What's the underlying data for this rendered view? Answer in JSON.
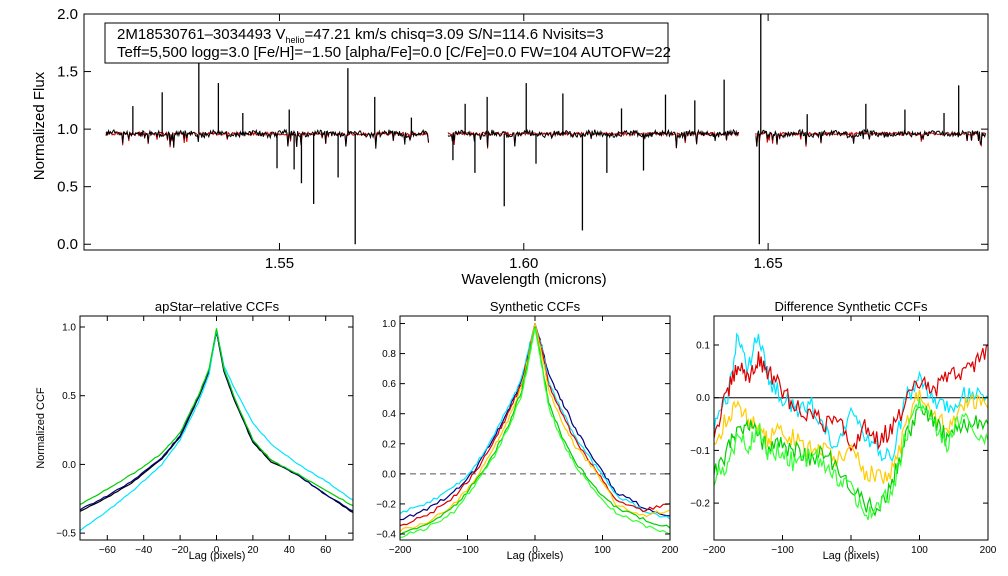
{
  "colors": {
    "background": "#ffffff",
    "axis": "#000000",
    "observed": "#000000",
    "model": "#cc0000",
    "black": "#000000",
    "navy": "#000080",
    "cyan": "#00e5ff",
    "green": "#00d000",
    "lime": "#33ff33",
    "yellow": "#ffcc00",
    "red": "#dd0000",
    "gray": "#555555"
  },
  "chart_data": [
    {
      "id": "spectrum",
      "type": "line",
      "title": "",
      "xlabel": "Wavelength (microns)",
      "ylabel": "Normalized Flux",
      "xlim": [
        1.51,
        1.695
      ],
      "ylim": [
        -0.05,
        2.0
      ],
      "x_ticks": [
        1.55,
        1.6,
        1.65
      ],
      "x_tick_labels": [
        "1.55",
        "1.60",
        "1.65"
      ],
      "y_ticks": [
        0.0,
        0.5,
        1.0,
        1.5,
        2.0
      ],
      "y_tick_labels": [
        "0.0",
        "0.5",
        "1.0",
        "1.5",
        "2.0"
      ],
      "chips": [
        [
          1.5145,
          1.5805
        ],
        [
          1.5845,
          1.644
        ],
        [
          1.6475,
          1.6945
        ]
      ],
      "continuum": 0.96,
      "emission_spikes": [
        [
          1.52,
          1.2
        ],
        [
          1.526,
          1.32
        ],
        [
          1.5335,
          1.6
        ],
        [
          1.5375,
          1.4
        ],
        [
          1.5425,
          1.14
        ],
        [
          1.552,
          1.17
        ],
        [
          1.564,
          1.53
        ],
        [
          1.5695,
          1.28
        ],
        [
          1.577,
          1.1
        ],
        [
          1.588,
          1.22
        ],
        [
          1.5925,
          1.28
        ],
        [
          1.6005,
          1.4
        ],
        [
          1.608,
          1.31
        ],
        [
          1.62,
          1.18
        ],
        [
          1.629,
          1.3
        ],
        [
          1.635,
          1.25
        ],
        [
          1.641,
          1.43
        ],
        [
          1.6485,
          2.0
        ],
        [
          1.658,
          1.13
        ],
        [
          1.67,
          1.22
        ],
        [
          1.678,
          1.17
        ],
        [
          1.686,
          1.14
        ],
        [
          1.689,
          1.38
        ]
      ],
      "absorption_spikes": [
        [
          1.5495,
          0.66
        ],
        [
          1.553,
          0.65
        ],
        [
          1.5545,
          0.53
        ],
        [
          1.557,
          0.35
        ],
        [
          1.562,
          0.58
        ],
        [
          1.5655,
          0.0
        ],
        [
          1.5855,
          0.73
        ],
        [
          1.59,
          0.62
        ],
        [
          1.596,
          0.33
        ],
        [
          1.6025,
          0.7
        ],
        [
          1.612,
          0.12
        ],
        [
          1.617,
          0.62
        ],
        [
          1.6245,
          0.64
        ],
        [
          1.6482,
          0.0
        ]
      ],
      "annotation": {
        "line1": "2M18530761–3034493  V",
        "sub": "helio",
        "line1b": "=47.21 km/s  chisq=3.09  S/N=114.6  Nvisits=3",
        "line2": "Teff=5,500 logg=3.0 [Fe/H]=−1.50 [alpha/Fe]=0.0 [C/Fe]=0.0 FW=104 AUTOFW=22"
      },
      "series": [
        {
          "name": "observed",
          "color": "#000000"
        },
        {
          "name": "model",
          "color": "#cc0000"
        }
      ]
    },
    {
      "id": "apstar_ccf",
      "type": "line",
      "title": "apStar–relative CCFs",
      "xlabel": "Lag (pixels)",
      "ylabel": "Normalized CCF",
      "xlim": [
        -75,
        75
      ],
      "ylim": [
        -0.55,
        1.08
      ],
      "x_ticks": [
        -60,
        -40,
        -20,
        0,
        20,
        40,
        60
      ],
      "x_tick_labels": [
        "−60",
        "−40",
        "−20",
        "0",
        "20",
        "40",
        "60"
      ],
      "y_ticks": [
        -0.5,
        0.0,
        0.5,
        1.0
      ],
      "y_tick_labels": [
        "−0.5",
        "0.0",
        "0.5",
        "1.0"
      ],
      "series": [
        {
          "name": "black",
          "color": "#000000",
          "x": [
            -75,
            -60,
            -45,
            -30,
            -20,
            -10,
            -4,
            0,
            4,
            10,
            20,
            30,
            45,
            60,
            75
          ],
          "y": [
            -0.34,
            -0.24,
            -0.12,
            0.04,
            0.2,
            0.48,
            0.68,
            0.97,
            0.68,
            0.46,
            0.16,
            0.02,
            -0.08,
            -0.22,
            -0.35
          ]
        },
        {
          "name": "navy",
          "color": "#000080",
          "x": [
            -75,
            -60,
            -45,
            -30,
            -20,
            -10,
            -4,
            0,
            4,
            10,
            20,
            30,
            45,
            60,
            75
          ],
          "y": [
            -0.33,
            -0.23,
            -0.11,
            0.05,
            0.21,
            0.49,
            0.69,
            0.97,
            0.69,
            0.47,
            0.17,
            0.03,
            -0.08,
            -0.22,
            -0.34
          ]
        },
        {
          "name": "cyan",
          "color": "#00e5ff",
          "x": [
            -75,
            -60,
            -45,
            -30,
            -20,
            -10,
            -4,
            0,
            4,
            10,
            20,
            30,
            45,
            60,
            75
          ],
          "y": [
            -0.48,
            -0.34,
            -0.18,
            0.0,
            0.18,
            0.45,
            0.66,
            0.98,
            0.72,
            0.55,
            0.3,
            0.15,
            0.0,
            -0.12,
            -0.26
          ]
        },
        {
          "name": "green",
          "color": "#00d000",
          "x": [
            -75,
            -60,
            -45,
            -30,
            -20,
            -10,
            -4,
            0,
            4,
            10,
            20,
            30,
            45,
            60,
            75
          ],
          "y": [
            -0.29,
            -0.18,
            -0.06,
            0.08,
            0.23,
            0.5,
            0.7,
            0.99,
            0.7,
            0.48,
            0.18,
            0.03,
            -0.07,
            -0.19,
            -0.3
          ]
        }
      ]
    },
    {
      "id": "synthetic_ccf",
      "type": "line",
      "title": "Synthetic CCFs",
      "xlabel": "Lag (pixels)",
      "ylabel": "",
      "xlim": [
        -200,
        200
      ],
      "ylim": [
        -0.44,
        1.05
      ],
      "x_ticks": [
        -200,
        -100,
        0,
        100,
        200
      ],
      "x_tick_labels": [
        "−200",
        "−100",
        "0",
        "100",
        "200"
      ],
      "y_ticks": [
        -0.4,
        -0.2,
        0.0,
        0.2,
        0.4,
        0.6,
        0.8,
        1.0
      ],
      "y_tick_labels": [
        "−0.4",
        "−0.2",
        "0.0",
        "0.2",
        "0.4",
        "0.6",
        "0.8",
        "1.0"
      ],
      "hline": 0.0,
      "series": [
        {
          "name": "navy",
          "color": "#000080",
          "x": [
            -200,
            -160,
            -120,
            -90,
            -60,
            -40,
            -20,
            -10,
            0,
            10,
            20,
            40,
            60,
            90,
            120,
            160,
            200
          ],
          "y": [
            -0.3,
            -0.24,
            -0.12,
            0.02,
            0.25,
            0.42,
            0.62,
            0.8,
            1.0,
            0.85,
            0.66,
            0.48,
            0.3,
            0.08,
            -0.12,
            -0.22,
            -0.28
          ]
        },
        {
          "name": "cyan",
          "color": "#00e5ff",
          "x": [
            -200,
            -160,
            -120,
            -90,
            -60,
            -40,
            -20,
            -10,
            0,
            10,
            20,
            40,
            60,
            90,
            120,
            160,
            200
          ],
          "y": [
            -0.26,
            -0.2,
            -0.09,
            0.04,
            0.27,
            0.44,
            0.63,
            0.82,
            1.0,
            0.84,
            0.62,
            0.42,
            0.24,
            0.05,
            -0.14,
            -0.24,
            -0.3
          ]
        },
        {
          "name": "red",
          "color": "#dd0000",
          "x": [
            -200,
            -160,
            -120,
            -90,
            -60,
            -40,
            -20,
            -10,
            0,
            10,
            20,
            40,
            60,
            90,
            120,
            160,
            200
          ],
          "y": [
            -0.34,
            -0.28,
            -0.15,
            0.0,
            0.22,
            0.4,
            0.6,
            0.79,
            1.0,
            0.82,
            0.6,
            0.4,
            0.22,
            0.02,
            -0.17,
            -0.24,
            -0.2
          ]
        },
        {
          "name": "yellow",
          "color": "#ffcc00",
          "x": [
            -200,
            -160,
            -120,
            -90,
            -60,
            -40,
            -20,
            -10,
            0,
            10,
            20,
            40,
            60,
            90,
            120,
            160,
            200
          ],
          "y": [
            -0.38,
            -0.32,
            -0.2,
            -0.05,
            0.18,
            0.36,
            0.58,
            0.78,
            1.0,
            0.8,
            0.56,
            0.35,
            0.18,
            0.02,
            -0.2,
            -0.28,
            -0.24
          ]
        },
        {
          "name": "green",
          "color": "#00d000",
          "x": [
            -200,
            -160,
            -120,
            -90,
            -60,
            -40,
            -20,
            -10,
            0,
            10,
            20,
            40,
            60,
            90,
            120,
            160,
            200
          ],
          "y": [
            -0.4,
            -0.34,
            -0.22,
            -0.06,
            0.14,
            0.32,
            0.55,
            0.76,
            0.98,
            0.74,
            0.48,
            0.25,
            0.08,
            -0.1,
            -0.22,
            -0.3,
            -0.36
          ]
        },
        {
          "name": "lime",
          "color": "#33ff33",
          "x": [
            -200,
            -160,
            -120,
            -90,
            -60,
            -40,
            -20,
            -10,
            0,
            10,
            20,
            40,
            60,
            90,
            120,
            160,
            200
          ],
          "y": [
            -0.42,
            -0.36,
            -0.25,
            -0.08,
            0.12,
            0.3,
            0.52,
            0.74,
            0.97,
            0.72,
            0.45,
            0.22,
            0.05,
            -0.12,
            -0.26,
            -0.34,
            -0.4
          ]
        }
      ]
    },
    {
      "id": "difference_ccf",
      "type": "line",
      "title": "Difference Synthetic CCFs",
      "xlabel": "Lag (pixels)",
      "ylabel": "",
      "xlim": [
        -200,
        200
      ],
      "ylim": [
        -0.27,
        0.155
      ],
      "x_ticks": [
        -200,
        -100,
        0,
        100,
        200
      ],
      "x_tick_labels": [
        "−200",
        "−100",
        "0",
        "100",
        "200"
      ],
      "y_ticks": [
        -0.2,
        -0.1,
        0.0,
        0.1
      ],
      "y_tick_labels": [
        "−0.2",
        "−0.1",
        "0.0",
        "0.1"
      ],
      "hline": 0.0,
      "series": [
        {
          "name": "cyan",
          "color": "#00e5ff",
          "x": [
            -200,
            -180,
            -165,
            -150,
            -135,
            -120,
            -100,
            -80,
            -60,
            -40,
            -20,
            0,
            20,
            40,
            60,
            80,
            100,
            120,
            140,
            160,
            180,
            200
          ],
          "y": [
            -0.06,
            0.0,
            0.12,
            0.05,
            0.13,
            0.03,
            0.0,
            -0.02,
            -0.01,
            -0.06,
            -0.1,
            -0.02,
            -0.08,
            -0.1,
            -0.12,
            0.0,
            0.03,
            0.0,
            -0.02,
            0.0,
            0.01,
            0.0
          ]
        },
        {
          "name": "red",
          "color": "#dd0000",
          "x": [
            -200,
            -180,
            -165,
            -150,
            -135,
            -120,
            -100,
            -80,
            -60,
            -40,
            -20,
            0,
            20,
            40,
            60,
            80,
            100,
            120,
            140,
            160,
            180,
            200
          ],
          "y": [
            -0.07,
            0.01,
            0.06,
            0.04,
            0.07,
            0.05,
            0.01,
            -0.02,
            -0.03,
            -0.05,
            -0.03,
            -0.1,
            -0.05,
            -0.08,
            -0.06,
            -0.01,
            0.03,
            0.01,
            0.04,
            0.05,
            0.06,
            0.1
          ]
        },
        {
          "name": "yellow",
          "color": "#ffcc00",
          "x": [
            -200,
            -180,
            -165,
            -150,
            -135,
            -120,
            -100,
            -80,
            -60,
            -40,
            -20,
            0,
            20,
            40,
            60,
            80,
            100,
            120,
            140,
            160,
            180,
            200
          ],
          "y": [
            -0.08,
            -0.04,
            -0.01,
            -0.04,
            -0.06,
            -0.08,
            -0.06,
            -0.08,
            -0.1,
            -0.09,
            -0.12,
            -0.09,
            -0.14,
            -0.15,
            -0.14,
            -0.06,
            0.02,
            -0.03,
            -0.06,
            -0.02,
            -0.01,
            -0.02
          ]
        },
        {
          "name": "green",
          "color": "#00d000",
          "x": [
            -200,
            -180,
            -165,
            -150,
            -135,
            -120,
            -100,
            -80,
            -60,
            -40,
            -20,
            0,
            20,
            40,
            60,
            80,
            100,
            120,
            140,
            160,
            180,
            200
          ],
          "y": [
            -0.14,
            -0.1,
            -0.06,
            -0.05,
            -0.07,
            -0.1,
            -0.09,
            -0.1,
            -0.12,
            -0.1,
            -0.14,
            -0.18,
            -0.2,
            -0.22,
            -0.16,
            -0.08,
            -0.02,
            -0.04,
            -0.08,
            -0.06,
            -0.04,
            -0.05
          ]
        },
        {
          "name": "lime",
          "color": "#33ff33",
          "x": [
            -200,
            -180,
            -165,
            -150,
            -135,
            -120,
            -100,
            -80,
            -60,
            -40,
            -20,
            0,
            20,
            40,
            60,
            80,
            100,
            120,
            140,
            160,
            180,
            200
          ],
          "y": [
            -0.16,
            -0.12,
            -0.08,
            -0.09,
            -0.06,
            -0.11,
            -0.1,
            -0.13,
            -0.11,
            -0.12,
            -0.15,
            -0.16,
            -0.23,
            -0.2,
            -0.18,
            -0.07,
            -0.01,
            -0.05,
            -0.09,
            -0.03,
            -0.06,
            -0.08
          ]
        }
      ]
    }
  ]
}
